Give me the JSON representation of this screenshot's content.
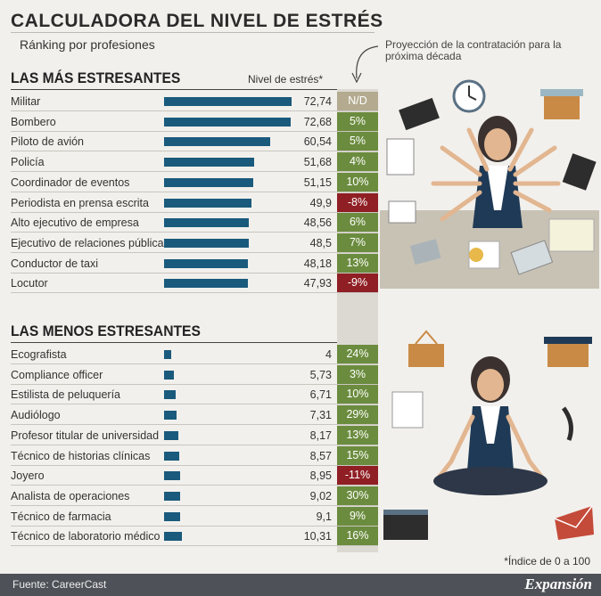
{
  "title": "CALCULADORA DEL NIVEL DE ESTRÉS",
  "subtitle": "Ránking por profesiones",
  "projection_note": "Proyección de la contratación para la próxima década",
  "metric_label": "Nivel de estrés*",
  "footnote": "*Índice de 0 a 100",
  "source": "Fuente: CareerCast",
  "brand": "Expansión",
  "colors": {
    "bar": "#1a5a7c",
    "positive": "#6b8c3e",
    "negative": "#8f1f24",
    "na": "#b3aa8f"
  },
  "chart_data": [
    {
      "type": "bar",
      "title": "LAS MÁS ESTRESANTES",
      "categories": [
        "Militar",
        "Bombero",
        "Piloto de avión",
        "Policía",
        "Coordinador de eventos",
        "Periodista en prensa escrita",
        "Alto ejecutivo de empresa",
        "Ejecutivo de relaciones públicas",
        "Conductor de taxi",
        "Locutor"
      ],
      "values": [
        72.74,
        72.68,
        60.54,
        51.68,
        51.15,
        49.9,
        48.56,
        48.5,
        48.18,
        47.93
      ],
      "value_labels": [
        "72,74",
        "72,68",
        "60,54",
        "51,68",
        "51,15",
        "49,9",
        "48,56",
        "48,5",
        "48,18",
        "47,93"
      ],
      "projection": [
        "N/D",
        "5%",
        "5%",
        "4%",
        "10%",
        "-8%",
        "6%",
        "7%",
        "13%",
        "-9%"
      ],
      "ylim": [
        0,
        100
      ]
    },
    {
      "type": "bar",
      "title": "LAS MENOS ESTRESANTES",
      "categories": [
        "Ecografista",
        "Compliance officer",
        "Estilista de peluquería",
        "Audiólogo",
        "Profesor titular de universidad",
        "Técnico de historias clínicas",
        "Joyero",
        "Analista de operaciones",
        "Técnico de farmacia",
        "Técnico de laboratorio médico"
      ],
      "values": [
        4,
        5.73,
        6.71,
        7.31,
        8.17,
        8.57,
        8.95,
        9.02,
        9.1,
        10.31
      ],
      "value_labels": [
        "4",
        "5,73",
        "6,71",
        "7,31",
        "8,17",
        "8,57",
        "8,95",
        "9,02",
        "9,1",
        "10,31"
      ],
      "projection": [
        "24%",
        "3%",
        "10%",
        "29%",
        "13%",
        "15%",
        "-11%",
        "30%",
        "9%",
        "16%"
      ],
      "ylim": [
        0,
        100
      ]
    }
  ]
}
